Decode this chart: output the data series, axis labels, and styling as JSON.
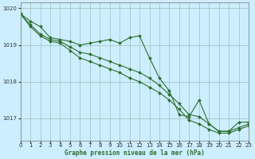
{
  "title": "Graphe pression niveau de la mer (hPa)",
  "background_color": "#cceeff",
  "grid_color": "#aacccc",
  "line_color": "#2d6e2d",
  "xlim": [
    0,
    23
  ],
  "ylim": [
    1016.4,
    1020.15
  ],
  "yticks": [
    1017,
    1018,
    1019,
    1020
  ],
  "xticks": [
    0,
    1,
    2,
    3,
    4,
    5,
    6,
    7,
    8,
    9,
    10,
    11,
    12,
    13,
    14,
    15,
    16,
    17,
    18,
    19,
    20,
    21,
    22,
    23
  ],
  "series1": [
    1019.85,
    1019.65,
    1019.5,
    1019.2,
    1019.15,
    1019.1,
    1019.0,
    1019.05,
    1019.1,
    1019.15,
    1019.05,
    1019.2,
    1019.25,
    1018.65,
    1018.1,
    1017.75,
    1017.1,
    1017.05,
    1017.5,
    1016.85,
    1016.65,
    1016.65,
    1016.9,
    1016.9
  ],
  "series2": [
    1019.85,
    1019.55,
    1019.3,
    1019.15,
    1019.1,
    1018.95,
    1018.8,
    1018.75,
    1018.65,
    1018.55,
    1018.45,
    1018.35,
    1018.25,
    1018.1,
    1017.9,
    1017.65,
    1017.4,
    1017.1,
    1017.05,
    1016.85,
    1016.65,
    1016.65,
    1016.75,
    1016.85
  ],
  "series3": [
    1019.85,
    1019.5,
    1019.25,
    1019.1,
    1019.05,
    1018.85,
    1018.65,
    1018.55,
    1018.45,
    1018.35,
    1018.25,
    1018.1,
    1018.0,
    1017.85,
    1017.7,
    1017.5,
    1017.25,
    1016.95,
    1016.85,
    1016.7,
    1016.6,
    1016.6,
    1016.7,
    1016.8
  ]
}
